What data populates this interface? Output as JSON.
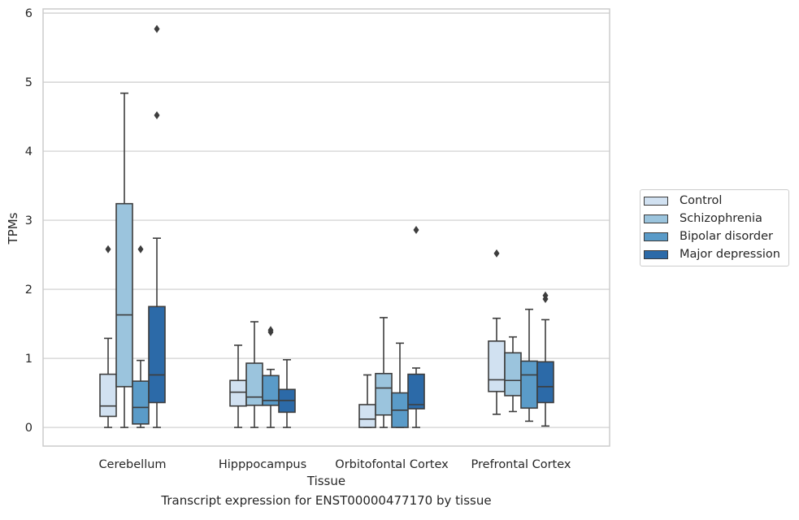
{
  "caption": "Transcript expression for ENST00000477170 by tissue",
  "chart_data": {
    "type": "box",
    "xlabel": "Tissue",
    "ylabel": "TPMs",
    "ylim": [
      -0.27,
      6.06
    ],
    "yticks": [
      0,
      1,
      2,
      3,
      4,
      5,
      6
    ],
    "grid": true,
    "legend_position": "right",
    "categories": [
      "Cerebellum",
      "Hipppocampus",
      "Orbitofontal Cortex",
      "Prefrontal Cortex"
    ],
    "series": [
      {
        "name": "Control",
        "color": "#d1e1f1",
        "boxes": [
          {
            "min": 0.0,
            "q1": 0.16,
            "median": 0.31,
            "q3": 0.77,
            "max": 1.29,
            "outliers": [
              2.58
            ]
          },
          {
            "min": 0.0,
            "q1": 0.31,
            "median": 0.51,
            "q3": 0.68,
            "max": 1.19,
            "outliers": []
          },
          {
            "min": 0.0,
            "q1": 0.0,
            "median": 0.12,
            "q3": 0.33,
            "max": 0.76,
            "outliers": []
          },
          {
            "min": 0.19,
            "q1": 0.52,
            "median": 0.69,
            "q3": 1.25,
            "max": 1.58,
            "outliers": [
              2.52
            ]
          }
        ]
      },
      {
        "name": "Schizophrenia",
        "color": "#9bc4dd",
        "boxes": [
          {
            "min": 0.0,
            "q1": 0.59,
            "median": 1.63,
            "q3": 3.24,
            "max": 4.84,
            "outliers": []
          },
          {
            "min": 0.0,
            "q1": 0.32,
            "median": 0.44,
            "q3": 0.93,
            "max": 1.53,
            "outliers": []
          },
          {
            "min": 0.0,
            "q1": 0.18,
            "median": 0.57,
            "q3": 0.78,
            "max": 1.59,
            "outliers": []
          },
          {
            "min": 0.23,
            "q1": 0.46,
            "median": 0.68,
            "q3": 1.08,
            "max": 1.31,
            "outliers": []
          }
        ]
      },
      {
        "name": "Bipolar disorder",
        "color": "#5a9bc8",
        "boxes": [
          {
            "min": 0.0,
            "q1": 0.05,
            "median": 0.29,
            "q3": 0.67,
            "max": 0.97,
            "outliers": [
              2.58
            ]
          },
          {
            "min": 0.0,
            "q1": 0.32,
            "median": 0.39,
            "q3": 0.75,
            "max": 0.84,
            "outliers": [
              1.38,
              1.41
            ]
          },
          {
            "min": 0.0,
            "q1": 0.0,
            "median": 0.25,
            "q3": 0.5,
            "max": 1.22,
            "outliers": []
          },
          {
            "min": 0.09,
            "q1": 0.28,
            "median": 0.76,
            "q3": 0.96,
            "max": 1.71,
            "outliers": []
          }
        ]
      },
      {
        "name": "Major depression",
        "color": "#2c6aa8",
        "boxes": [
          {
            "min": 0.0,
            "q1": 0.36,
            "median": 0.76,
            "q3": 1.75,
            "max": 2.74,
            "outliers": [
              4.52,
              5.77
            ]
          },
          {
            "min": 0.0,
            "q1": 0.22,
            "median": 0.39,
            "q3": 0.55,
            "max": 0.98,
            "outliers": []
          },
          {
            "min": 0.0,
            "q1": 0.27,
            "median": 0.33,
            "q3": 0.77,
            "max": 0.86,
            "outliers": [
              2.86
            ]
          },
          {
            "min": 0.02,
            "q1": 0.36,
            "median": 0.59,
            "q3": 0.95,
            "max": 1.56,
            "outliers": [
              1.86,
              1.91
            ]
          }
        ]
      }
    ]
  }
}
